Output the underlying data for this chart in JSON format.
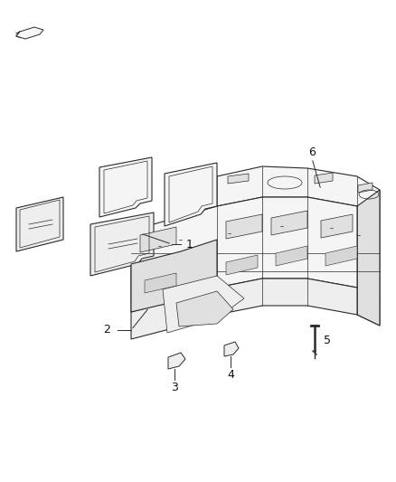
{
  "bg_color": "#ffffff",
  "line_color": "#2a2a2a",
  "fig_width": 4.38,
  "fig_height": 5.33,
  "dpi": 100,
  "label_fontsize": 9,
  "lw_main": 0.8,
  "lw_thin": 0.5,
  "face_light": "#f5f5f5",
  "face_mid": "#eeeeee",
  "face_dark": "#e0e0e0"
}
